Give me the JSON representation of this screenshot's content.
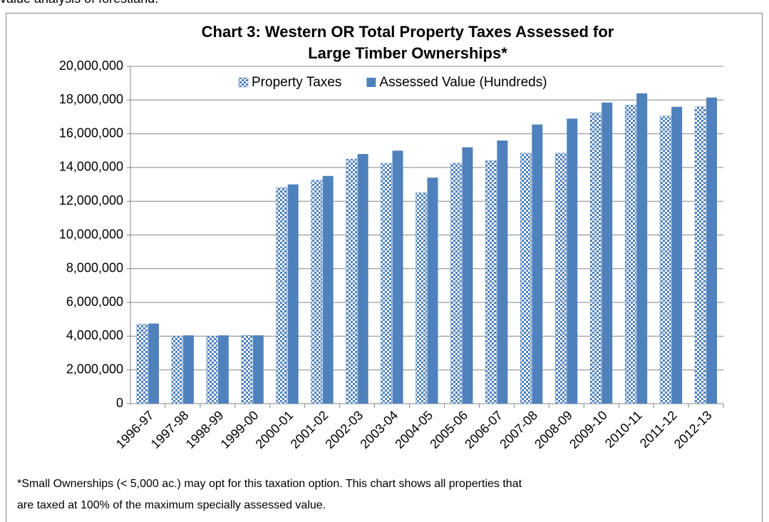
{
  "chart_data": {
    "type": "bar",
    "heading": "value analysis of forestland.",
    "title": [
      "Chart 3: Western OR Total Property Taxes Assessed for",
      "Large Timber Ownerships*"
    ],
    "categories": [
      "1996-97",
      "1997-98",
      "1998-99",
      "1999-00",
      "2000-01",
      "2001-02",
      "2002-03",
      "2003-04",
      "2004-05",
      "2005-06",
      "2006-07",
      "2007-08",
      "2008-09",
      "2009-10",
      "2010-11",
      "2011-12",
      "2012-13"
    ],
    "series": [
      {
        "name": "Property Taxes",
        "color": "#4f81bd",
        "pattern": "dots",
        "values": [
          4700000,
          4000000,
          4000000,
          4050000,
          12800000,
          13250000,
          14500000,
          14250000,
          12500000,
          14250000,
          14400000,
          14850000,
          14850000,
          17250000,
          17700000,
          17050000,
          17600000
        ]
      },
      {
        "name": "Assessed Value (Hundreds)",
        "color": "#4f81bd",
        "values": [
          4750000,
          4050000,
          4050000,
          4050000,
          13000000,
          13500000,
          14800000,
          15000000,
          13400000,
          15200000,
          15600000,
          16550000,
          16900000,
          17850000,
          18400000,
          17600000,
          18150000
        ]
      }
    ],
    "ylim": [
      0,
      20000000
    ],
    "yticks": [
      0,
      {
        "value": 2000000,
        "label": "2,000,000"
      },
      {
        "value": 4000000,
        "label": "4,000,000"
      },
      {
        "value": 6000000,
        "label": "6,000,000"
      },
      {
        "value": 8000000,
        "label": "8,000,000"
      },
      {
        "value": 10000000,
        "label": "10,000,000"
      },
      {
        "value": 12000000,
        "label": "12,000,000"
      },
      {
        "value": 14000000,
        "label": "14,000,000"
      },
      {
        "value": 16000000,
        "label": "16,000,000"
      },
      {
        "value": 18000000,
        "label": "18,000,000"
      },
      {
        "value": 20000000,
        "label": "20,000,000"
      }
    ],
    "grid": true,
    "legend": "top",
    "footnote": [
      "*Small Ownerships  (< 5,000 ac.) may opt for this  taxation option. This chart shows all  properties  that",
      "are  taxed at 100% of the maximum specially assessed value."
    ]
  }
}
